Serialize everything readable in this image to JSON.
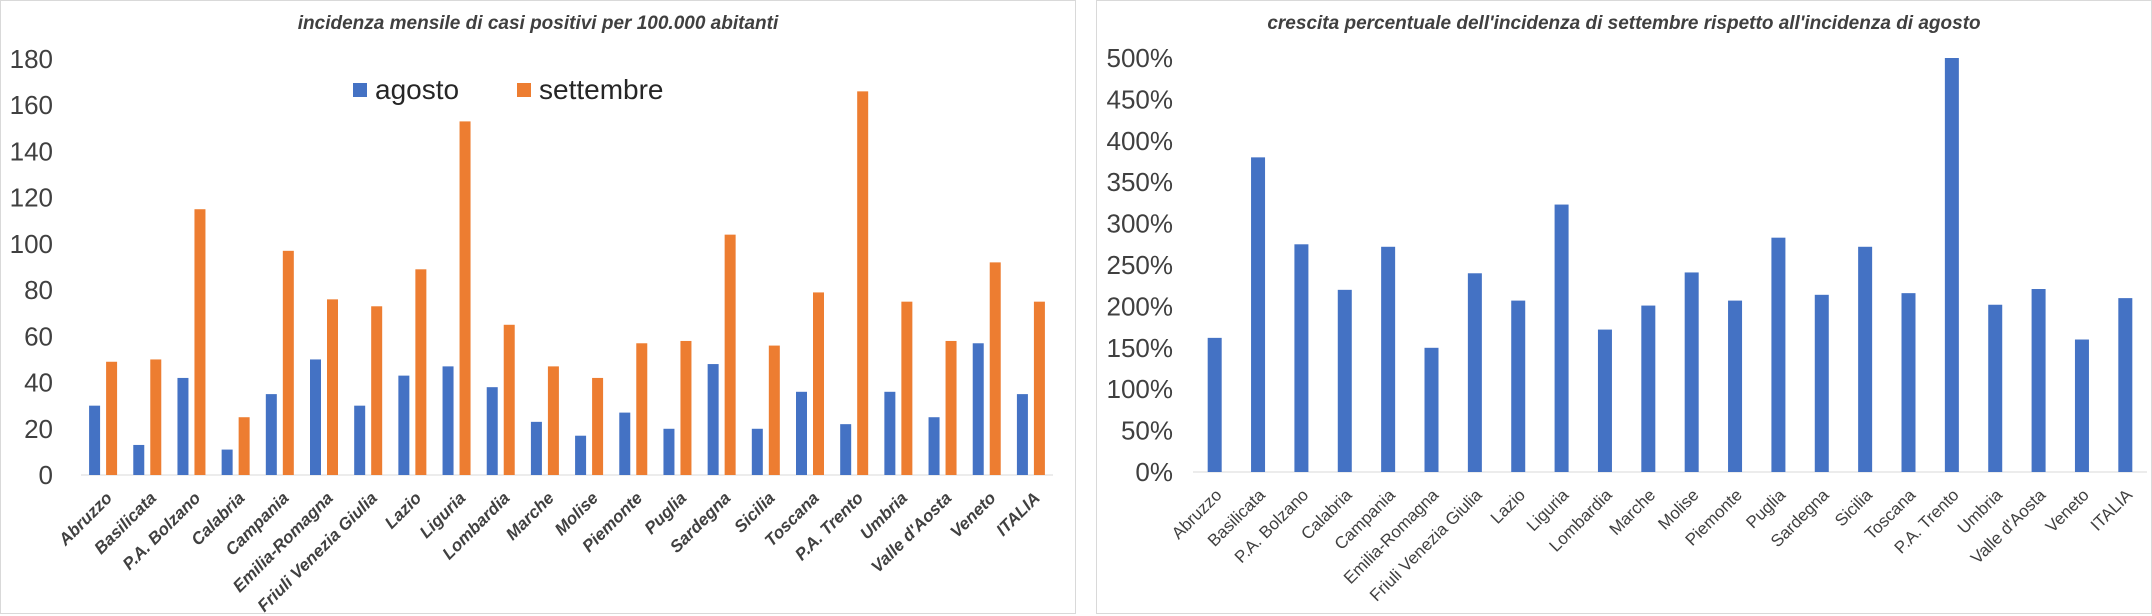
{
  "chart_data": [
    {
      "type": "bar",
      "title": "incidenza mensile di casi positivi per 100.000 abitanti",
      "xlabel": "",
      "ylabel": "",
      "ylim": [
        0,
        180
      ],
      "yticks": [
        "0",
        "20",
        "40",
        "60",
        "80",
        "100",
        "120",
        "140",
        "160",
        "180"
      ],
      "categories": [
        "Abruzzo",
        "Basilicata",
        "P.A. Bolzano",
        "Calabria",
        "Campania",
        "Emilia-Romagna",
        "Friuli Venezia Giulia",
        "Lazio",
        "Liguria",
        "Lombardia",
        "Marche",
        "Molise",
        "Piemonte",
        "Puglia",
        "Sardegna",
        "Sicilia",
        "Toscana",
        "P.A. Trento",
        "Umbria",
        "Valle d'Aosta",
        "Veneto",
        "ITALIA"
      ],
      "series": [
        {
          "name": "agosto",
          "color": "#4472c4",
          "values": [
            30,
            13,
            42,
            11,
            35,
            50,
            30,
            43,
            47,
            38,
            23,
            17,
            27,
            20,
            48,
            20,
            36,
            22,
            36,
            25,
            57,
            35
          ]
        },
        {
          "name": "settembre",
          "color": "#ed7d31",
          "values": [
            49,
            50,
            115,
            25,
            97,
            76,
            73,
            89,
            153,
            65,
            47,
            42,
            57,
            58,
            104,
            56,
            79,
            166,
            75,
            58,
            92,
            75
          ]
        }
      ],
      "legend": "top-center"
    },
    {
      "type": "bar",
      "title": "crescita percentuale dell'incidenza di settembre rispetto all'incidenza di agosto",
      "xlabel": "",
      "ylabel": "",
      "ylim": [
        0,
        500
      ],
      "yticks": [
        "0%",
        "50%",
        "100%",
        "150%",
        "200%",
        "250%",
        "300%",
        "350%",
        "400%",
        "450%",
        "500%"
      ],
      "categories": [
        "Abruzzo",
        "Basilicata",
        "P.A. Bolzano",
        "Calabria",
        "Campania",
        "Emilia-Romagna",
        "Friuli Venezia Giulia",
        "Lazio",
        "Liguria",
        "Lombardia",
        "Marche",
        "Molise",
        "Piemonte",
        "Puglia",
        "Sardegna",
        "Sicilia",
        "Toscana",
        "P.A. Trento",
        "Umbria",
        "Valle d'Aosta",
        "Veneto",
        "ITALIA"
      ],
      "series": [
        {
          "name": "crescita",
          "color": "#4472c4",
          "values": [
            162,
            380,
            275,
            220,
            272,
            150,
            240,
            207,
            323,
            172,
            201,
            241,
            207,
            283,
            214,
            272,
            216,
            500,
            202,
            221,
            160,
            210
          ]
        }
      ]
    }
  ]
}
